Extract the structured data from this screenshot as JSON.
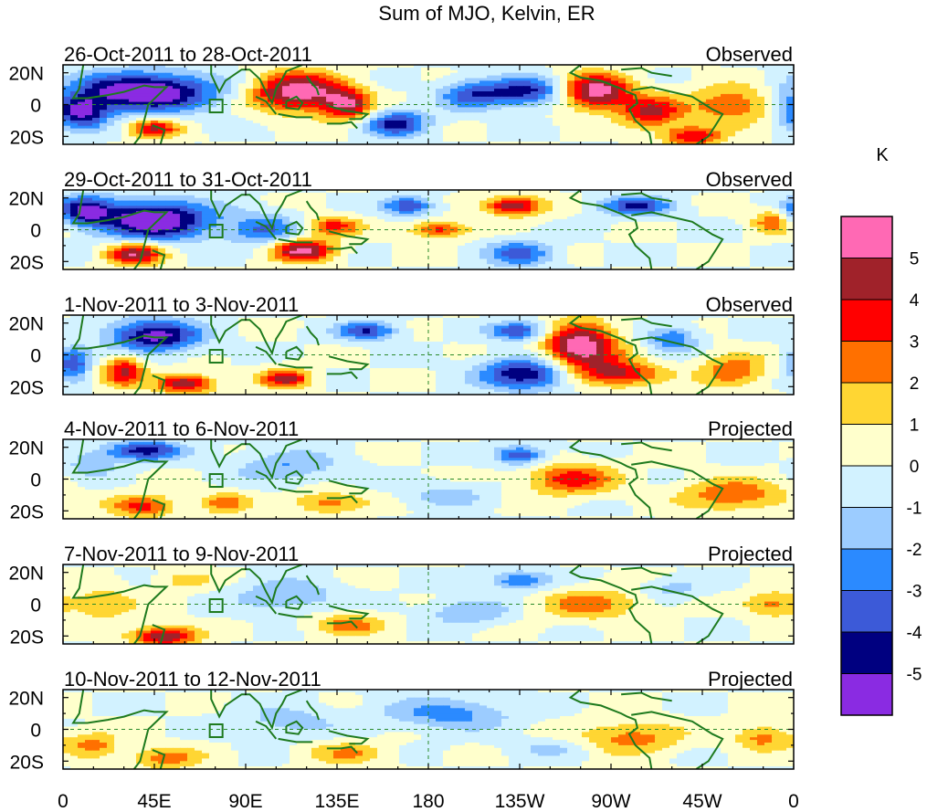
{
  "chart_data": {
    "type": "heatmap",
    "title": "Sum of MJO, Kelvin, ER",
    "x_tick_labels": [
      "0",
      "45E",
      "90E",
      "135E",
      "180",
      "135W",
      "90W",
      "45W",
      "0"
    ],
    "x_range_deg_east": [
      0,
      360
    ],
    "y_tick_labels": [
      "20N",
      "0",
      "20S"
    ],
    "y_range_deg": [
      -25,
      25
    ],
    "colorbar": {
      "unit": "K",
      "labels": [
        "5",
        "4",
        "3",
        "2",
        "1",
        "0",
        "-1",
        "-2",
        "-3",
        "-4",
        "-5"
      ],
      "bins": [
        {
          "color": "#ff69b4"
        },
        {
          "color": "#a0222a"
        },
        {
          "color": "#ff0000"
        },
        {
          "color": "#ff7000"
        },
        {
          "color": "#ffd633"
        },
        {
          "color": "#ffffcc"
        },
        {
          "color": "#d2f2ff"
        },
        {
          "color": "#9cccff"
        },
        {
          "color": "#2b8aff"
        },
        {
          "color": "#3c5ad8"
        },
        {
          "color": "#000080"
        },
        {
          "color": "#8a2be2"
        }
      ]
    },
    "panels": [
      {
        "date_range": "26-Oct-2011 to 28-Oct-2011",
        "status": "Observed",
        "blobs": [
          {
            "lon": 40,
            "lat": 8,
            "rlon": 35,
            "rlat": 12,
            "amp": -6.5
          },
          {
            "lon": 8,
            "lat": -5,
            "rlon": 14,
            "rlat": 10,
            "amp": -5
          },
          {
            "lon": 115,
            "lat": 8,
            "rlon": 22,
            "rlat": 12,
            "amp": 6
          },
          {
            "lon": 140,
            "lat": 0,
            "rlon": 12,
            "rlat": 10,
            "amp": 4.5
          },
          {
            "lon": 200,
            "lat": 6,
            "rlon": 15,
            "rlat": 9,
            "amp": -3
          },
          {
            "lon": 228,
            "lat": 8,
            "rlon": 22,
            "rlat": 9,
            "amp": -4.5
          },
          {
            "lon": 262,
            "lat": 8,
            "rlon": 18,
            "rlat": 11,
            "amp": 6
          },
          {
            "lon": 290,
            "lat": -5,
            "rlon": 15,
            "rlat": 10,
            "amp": 4
          },
          {
            "lon": 330,
            "lat": 0,
            "rlon": 22,
            "rlat": 12,
            "amp": 3
          },
          {
            "lon": 45,
            "lat": -15,
            "rlon": 12,
            "rlat": 6,
            "amp": 4
          },
          {
            "lon": 165,
            "lat": -12,
            "rlon": 15,
            "rlat": 8,
            "amp": -4.5
          },
          {
            "lon": 310,
            "lat": -20,
            "rlon": 14,
            "rlat": 6,
            "amp": 4
          }
        ]
      },
      {
        "date_range": "29-Oct-2011 to 31-Oct-2011",
        "status": "Observed",
        "blobs": [
          {
            "lon": 45,
            "lat": 6,
            "rlon": 28,
            "rlat": 12,
            "amp": -6.5
          },
          {
            "lon": 10,
            "lat": 12,
            "rlon": 14,
            "rlat": 9,
            "amp": -4.5
          },
          {
            "lon": 35,
            "lat": -15,
            "rlon": 14,
            "rlat": 7,
            "amp": 5
          },
          {
            "lon": 118,
            "lat": -13,
            "rlon": 15,
            "rlat": 7,
            "amp": 5.5
          },
          {
            "lon": 132,
            "lat": 2,
            "rlon": 14,
            "rlat": 6,
            "amp": 3.5
          },
          {
            "lon": 170,
            "lat": 15,
            "rlon": 12,
            "rlat": 6,
            "amp": -4
          },
          {
            "lon": 222,
            "lat": 15,
            "rlon": 14,
            "rlat": 6,
            "amp": 5
          },
          {
            "lon": 282,
            "lat": 15,
            "rlon": 18,
            "rlat": 6,
            "amp": -4
          },
          {
            "lon": 350,
            "lat": 5,
            "rlon": 10,
            "rlat": 8,
            "amp": 3
          },
          {
            "lon": 185,
            "lat": 0,
            "rlon": 14,
            "rlat": 5,
            "amp": 3.5
          },
          {
            "lon": 225,
            "lat": -15,
            "rlon": 16,
            "rlat": 8,
            "amp": -3.5
          },
          {
            "lon": 100,
            "lat": 0,
            "rlon": 18,
            "rlat": 10,
            "amp": -3
          }
        ]
      },
      {
        "date_range": "1-Nov-2011 to 3-Nov-2011",
        "status": "Observed",
        "blobs": [
          {
            "lon": 45,
            "lat": 12,
            "rlon": 22,
            "rlat": 10,
            "amp": -5.5
          },
          {
            "lon": 30,
            "lat": -10,
            "rlon": 10,
            "rlat": 10,
            "amp": 4
          },
          {
            "lon": 60,
            "lat": -18,
            "rlon": 14,
            "rlat": 6,
            "amp": 5
          },
          {
            "lon": 110,
            "lat": -15,
            "rlon": 12,
            "rlat": 6,
            "amp": 4.5
          },
          {
            "lon": 150,
            "lat": 15,
            "rlon": 14,
            "rlat": 6,
            "amp": -4
          },
          {
            "lon": 255,
            "lat": 5,
            "rlon": 18,
            "rlat": 15,
            "amp": 6
          },
          {
            "lon": 275,
            "lat": -12,
            "rlon": 20,
            "rlat": 8,
            "amp": 4
          },
          {
            "lon": 228,
            "lat": -12,
            "rlon": 22,
            "rlat": 10,
            "amp": -5
          },
          {
            "lon": 225,
            "lat": 15,
            "rlon": 14,
            "rlat": 6,
            "amp": -4
          },
          {
            "lon": 330,
            "lat": -10,
            "rlon": 16,
            "rlat": 10,
            "amp": 3
          },
          {
            "lon": 5,
            "lat": -5,
            "rlon": 8,
            "rlat": 10,
            "amp": -4
          },
          {
            "lon": 300,
            "lat": 10,
            "rlon": 12,
            "rlat": 8,
            "amp": -3
          }
        ]
      },
      {
        "date_range": "4-Nov-2011 to 6-Nov-2011",
        "status": "Projected",
        "blobs": [
          {
            "lon": 40,
            "lat": 18,
            "rlon": 18,
            "rlat": 6,
            "amp": -4.5
          },
          {
            "lon": 40,
            "lat": -17,
            "rlon": 16,
            "rlat": 7,
            "amp": 3.5
          },
          {
            "lon": 80,
            "lat": -15,
            "rlon": 12,
            "rlat": 7,
            "amp": 2.5
          },
          {
            "lon": 130,
            "lat": -15,
            "rlon": 18,
            "rlat": 7,
            "amp": 2.5
          },
          {
            "lon": 225,
            "lat": 15,
            "rlon": 12,
            "rlat": 6,
            "amp": -4
          },
          {
            "lon": 250,
            "lat": 0,
            "rlon": 22,
            "rlat": 10,
            "amp": 3.5
          },
          {
            "lon": 330,
            "lat": -10,
            "rlon": 25,
            "rlat": 10,
            "amp": 3
          },
          {
            "lon": 110,
            "lat": 8,
            "rlon": 25,
            "rlat": 10,
            "amp": -2
          },
          {
            "lon": 190,
            "lat": -10,
            "rlon": 20,
            "rlat": 8,
            "amp": -1.5
          },
          {
            "lon": 15,
            "lat": 10,
            "rlon": 12,
            "rlat": 8,
            "amp": -2
          }
        ]
      },
      {
        "date_range": "7-Nov-2011 to 9-Nov-2011",
        "status": "Projected",
        "blobs": [
          {
            "lon": 50,
            "lat": -20,
            "rlon": 16,
            "rlat": 6,
            "amp": 5
          },
          {
            "lon": 20,
            "lat": 0,
            "rlon": 15,
            "rlat": 10,
            "amp": 2
          },
          {
            "lon": 60,
            "lat": 15,
            "rlon": 14,
            "rlat": 6,
            "amp": 1.5
          },
          {
            "lon": 140,
            "lat": -13,
            "rlon": 18,
            "rlat": 7,
            "amp": 2.5
          },
          {
            "lon": 110,
            "lat": 5,
            "rlon": 25,
            "rlat": 10,
            "amp": -2
          },
          {
            "lon": 225,
            "lat": 15,
            "rlon": 16,
            "rlat": 6,
            "amp": -3
          },
          {
            "lon": 260,
            "lat": 0,
            "rlon": 25,
            "rlat": 10,
            "amp": 2.5
          },
          {
            "lon": 350,
            "lat": 0,
            "rlon": 14,
            "rlat": 8,
            "amp": 2.5
          },
          {
            "lon": 200,
            "lat": -5,
            "rlon": 20,
            "rlat": 8,
            "amp": -2
          },
          {
            "lon": 300,
            "lat": 10,
            "rlon": 15,
            "rlat": 6,
            "amp": -1.5
          }
        ]
      },
      {
        "date_range": "10-Nov-2011 to 12-Nov-2011",
        "status": "Projected",
        "blobs": [
          {
            "lon": 50,
            "lat": -18,
            "rlon": 18,
            "rlat": 7,
            "amp": 2.5
          },
          {
            "lon": 15,
            "lat": -10,
            "rlon": 12,
            "rlat": 8,
            "amp": 2.5
          },
          {
            "lon": 140,
            "lat": -15,
            "rlon": 20,
            "rlat": 7,
            "amp": 2
          },
          {
            "lon": 190,
            "lat": 10,
            "rlon": 30,
            "rlat": 10,
            "amp": -2.5
          },
          {
            "lon": 280,
            "lat": -5,
            "rlon": 25,
            "rlat": 10,
            "amp": 2.5
          },
          {
            "lon": 345,
            "lat": -5,
            "rlon": 14,
            "rlat": 8,
            "amp": 2.5
          },
          {
            "lon": 110,
            "lat": 5,
            "rlon": 25,
            "rlat": 10,
            "amp": -1.5
          },
          {
            "lon": 240,
            "lat": -12,
            "rlon": 20,
            "rlat": 6,
            "amp": -1.2
          }
        ]
      }
    ]
  }
}
